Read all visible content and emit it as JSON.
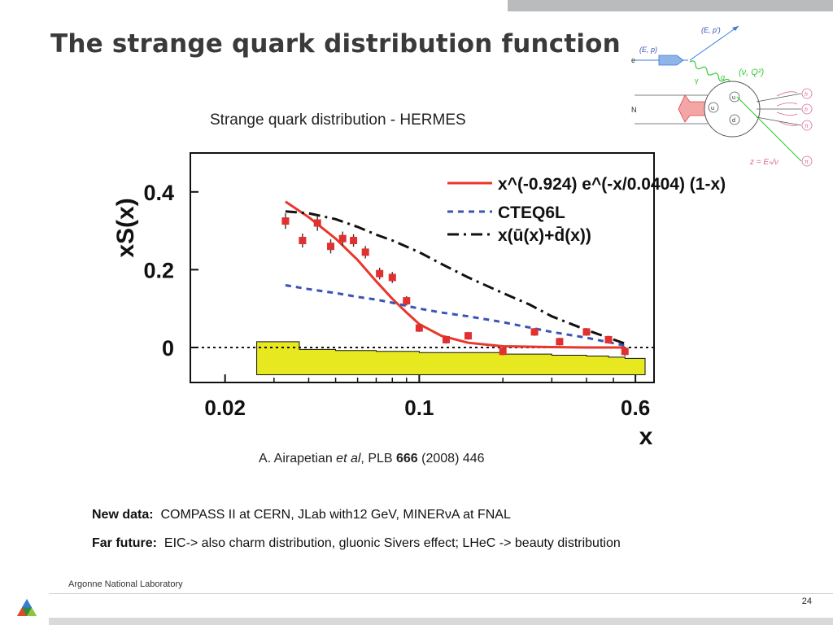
{
  "slide": {
    "title": "The strange quark distribution function",
    "subtitle": "Strange quark distribution - HERMES",
    "citation": {
      "author": "A. Airapetian ",
      "etal": "et al",
      "journal": ", PLB ",
      "volume": "666",
      "rest": " (2008) 446"
    },
    "notes": [
      {
        "label": "New data:",
        "text": "COMPASS II at CERN, JLab with12 GeV, MINERνA at FNAL"
      },
      {
        "label": "Far future:",
        "text": "EIC-> also charm distribution, gluonic Sivers effect; LHeC -> beauty distribution"
      }
    ],
    "footer": "Argonne National Laboratory",
    "page_number": "24"
  },
  "diagram": {
    "labels": {
      "out_lepton": "(E, p')",
      "in_lepton": "(E, p)",
      "electron": "e",
      "nucleon": "N",
      "photon": "γ",
      "q": "q",
      "virtual": "(ν, Q²)",
      "quark_u1": "u",
      "quark_u2": "u",
      "quark_d": "d",
      "hadron1": "h",
      "hadron2": "h",
      "hadron3": "π",
      "hadron4": "π",
      "z_formula": "z = Eₕ/ν"
    },
    "colors": {
      "green": "#33cc33",
      "blue": "#3a7bd5",
      "pink": "#d86a9c",
      "arrow": "#8fb4e8"
    }
  },
  "chart_data": {
    "type": "scatter",
    "ylabel": "xS(x)",
    "xlabel": "x",
    "x_scale": "log",
    "xlim": [
      0.015,
      0.7
    ],
    "ylim": [
      -0.09,
      0.5
    ],
    "x_ticks": [
      {
        "v": 0.02,
        "label": "0.02"
      },
      {
        "v": 0.1,
        "label": "0.1"
      },
      {
        "v": 0.6,
        "label": "0.6"
      }
    ],
    "y_ticks": [
      {
        "v": 0,
        "label": "0"
      },
      {
        "v": 0.2,
        "label": "0.2"
      },
      {
        "v": 0.4,
        "label": "0.4"
      }
    ],
    "data_points": {
      "x": [
        0.033,
        0.038,
        0.043,
        0.048,
        0.053,
        0.058,
        0.064,
        0.072,
        0.08,
        0.09,
        0.1,
        0.125,
        0.15,
        0.2,
        0.26,
        0.32,
        0.4,
        0.48,
        0.55
      ],
      "y": [
        0.325,
        0.275,
        0.32,
        0.26,
        0.28,
        0.275,
        0.245,
        0.19,
        0.18,
        0.12,
        0.05,
        0.02,
        0.03,
        -0.01,
        0.04,
        0.015,
        0.04,
        0.02,
        -0.01
      ],
      "err": [
        0.02,
        0.018,
        0.02,
        0.018,
        0.018,
        0.016,
        0.016,
        0.015,
        0.014,
        0.012,
        0.01,
        0.01,
        0.01,
        0.01,
        0.01,
        0.01,
        0.01,
        0.01,
        0.012
      ],
      "color": "#e03030"
    },
    "series": [
      {
        "name": "x^(-0.924) e^(-x/0.0404) (1-x)",
        "style": "solid",
        "color": "#e8372b",
        "x": [
          0.033,
          0.04,
          0.05,
          0.06,
          0.07,
          0.08,
          0.09,
          0.1,
          0.12,
          0.15,
          0.2,
          0.3,
          0.4,
          0.55
        ],
        "y": [
          0.375,
          0.335,
          0.28,
          0.225,
          0.17,
          0.125,
          0.09,
          0.06,
          0.03,
          0.012,
          0.003,
          0.001,
          0.0,
          0.0
        ]
      },
      {
        "name": "CTEQ6L",
        "style": "dashed",
        "color": "#3a54b4",
        "x": [
          0.033,
          0.04,
          0.05,
          0.06,
          0.07,
          0.08,
          0.1,
          0.12,
          0.15,
          0.2,
          0.3,
          0.4,
          0.55
        ],
        "y": [
          0.16,
          0.15,
          0.14,
          0.13,
          0.123,
          0.115,
          0.1,
          0.09,
          0.08,
          0.065,
          0.04,
          0.025,
          0.005
        ]
      },
      {
        "name": "x(ū(x)+d̄(x))",
        "style": "dashdot",
        "color": "#111111",
        "x": [
          0.033,
          0.04,
          0.05,
          0.06,
          0.07,
          0.08,
          0.1,
          0.12,
          0.15,
          0.2,
          0.25,
          0.3,
          0.4,
          0.55
        ],
        "y": [
          0.35,
          0.345,
          0.33,
          0.31,
          0.29,
          0.275,
          0.245,
          0.215,
          0.18,
          0.14,
          0.11,
          0.08,
          0.045,
          0.01
        ]
      }
    ],
    "systematic_band": {
      "color": "#e8e820",
      "x": [
        0.026,
        0.037,
        0.05,
        0.07,
        0.1,
        0.2,
        0.3,
        0.4,
        0.48,
        0.55,
        0.65
      ],
      "y": [
        0.015,
        -0.005,
        -0.008,
        -0.01,
        -0.013,
        -0.017,
        -0.02,
        -0.022,
        -0.025,
        -0.028,
        -0.03
      ]
    },
    "reference_line": 0,
    "legend_position": "top-right"
  }
}
